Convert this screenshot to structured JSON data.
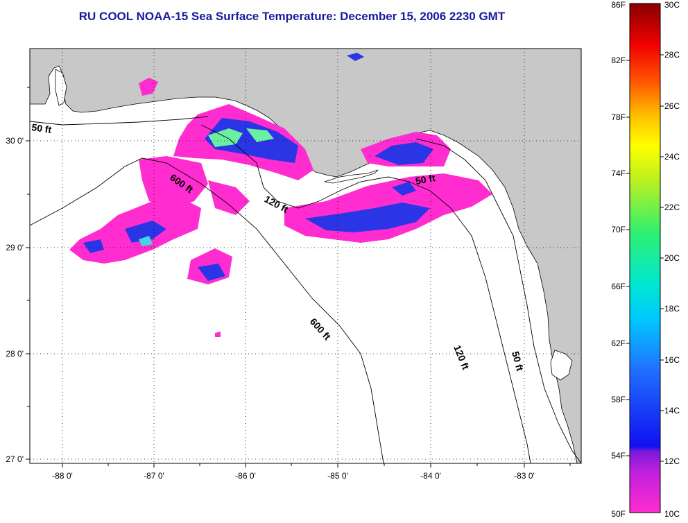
{
  "title": "RU COOL  NOAA-15  Sea Surface Temperature:  December 15, 2006 2230 GMT",
  "map": {
    "lon_ticks": [
      "-88 0'",
      "-87 0'",
      "-86 0'",
      "-85 0'",
      "-84 0'",
      "-83 0'"
    ],
    "lat_ticks": [
      "30 0'",
      "29 0'",
      "28 0'",
      "27 0'"
    ],
    "isobath_labels": [
      "50 ft",
      "600 ft",
      "120 ft",
      "50 ft",
      "600 ft",
      "120 ft",
      "50 ft"
    ],
    "colors": {
      "land": "#c8c8c8",
      "water": "#ffffff",
      "sst_cold": "#ff2ccf",
      "sst_mid": "#2a35e6",
      "sst_warm": "#6af0a0"
    }
  },
  "colorbar": {
    "fahrenheit_labels": [
      "86F",
      "82F",
      "78F",
      "74F",
      "70F",
      "66F",
      "62F",
      "58F",
      "54F",
      "50F"
    ],
    "celsius_labels": [
      "30C",
      "28C",
      "26C",
      "24C",
      "22C",
      "20C",
      "18C",
      "16C",
      "14C",
      "12C",
      "10C"
    ]
  }
}
